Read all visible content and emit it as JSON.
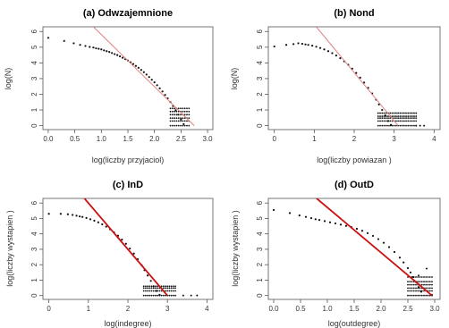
{
  "chart_data": [
    {
      "type": "scatter",
      "title": "(a) Odwzajemnione",
      "xlabel": "log(liczby przyjaciol)",
      "ylabel": "log(N)",
      "xlim": [
        -0.1,
        3.1
      ],
      "ylim": [
        -0.25,
        6.3
      ],
      "xticks": [
        "0.0",
        "0.5",
        "1.0",
        "1.5",
        "2.0",
        "2.5",
        "3.0"
      ],
      "xtick_values": [
        0,
        0.5,
        1,
        1.5,
        2,
        2.5,
        3
      ],
      "yticks": [
        "0",
        "1",
        "2",
        "3",
        "4",
        "5",
        "6"
      ],
      "ytick_values": [
        0,
        1,
        2,
        3,
        4,
        5,
        6
      ],
      "line_color": "#e28080",
      "line_width": 1,
      "fit_line": [
        [
          0.85,
          6.3
        ],
        [
          2.75,
          0.0
        ]
      ],
      "points": [
        [
          0.0,
          5.6
        ],
        [
          0.3,
          5.4
        ],
        [
          0.48,
          5.25
        ],
        [
          0.6,
          5.15
        ],
        [
          0.7,
          5.08
        ],
        [
          0.78,
          5.02
        ],
        [
          0.85,
          4.98
        ],
        [
          0.9,
          4.93
        ],
        [
          0.95,
          4.9
        ],
        [
          1.0,
          4.86
        ],
        [
          1.05,
          4.8
        ],
        [
          1.1,
          4.75
        ],
        [
          1.15,
          4.7
        ],
        [
          1.2,
          4.63
        ],
        [
          1.25,
          4.56
        ],
        [
          1.3,
          4.5
        ],
        [
          1.35,
          4.42
        ],
        [
          1.4,
          4.33
        ],
        [
          1.45,
          4.24
        ],
        [
          1.5,
          4.15
        ],
        [
          1.55,
          4.04
        ],
        [
          1.6,
          3.93
        ],
        [
          1.65,
          3.81
        ],
        [
          1.7,
          3.69
        ],
        [
          1.75,
          3.55
        ],
        [
          1.8,
          3.41
        ],
        [
          1.85,
          3.26
        ],
        [
          1.9,
          3.1
        ],
        [
          1.95,
          2.93
        ],
        [
          2.0,
          2.76
        ],
        [
          2.05,
          2.58
        ],
        [
          2.1,
          2.38
        ],
        [
          2.15,
          2.18
        ],
        [
          2.2,
          1.96
        ],
        [
          2.25,
          1.74
        ],
        [
          2.3,
          1.5
        ],
        [
          2.35,
          1.25
        ],
        [
          2.4,
          0.98
        ],
        [
          2.45,
          0.7
        ],
        [
          2.5,
          0.4
        ],
        [
          2.55,
          0.1
        ]
      ],
      "tail_levels": [
        1.1,
        0.9,
        0.7,
        0.48,
        0.3,
        0.0
      ],
      "tail_x": [
        2.3,
        2.65
      ]
    },
    {
      "type": "scatter",
      "title": "(b) Nond",
      "xlabel": "log(liczby powiazan )",
      "ylabel": "log(N)",
      "xlim": [
        -0.15,
        4.15
      ],
      "ylim": [
        -0.25,
        6.3
      ],
      "xticks": [
        "0",
        "1",
        "2",
        "3",
        "4"
      ],
      "xtick_values": [
        0,
        1,
        2,
        3,
        4
      ],
      "yticks": [
        "0",
        "1",
        "2",
        "3",
        "4",
        "5",
        "6"
      ],
      "ytick_values": [
        0,
        1,
        2,
        3,
        4,
        5,
        6
      ],
      "line_color": "#e28080",
      "line_width": 1,
      "fit_line": [
        [
          1.05,
          6.3
        ],
        [
          3.1,
          0.0
        ]
      ],
      "points": [
        [
          0.0,
          5.05
        ],
        [
          0.3,
          5.15
        ],
        [
          0.48,
          5.2
        ],
        [
          0.6,
          5.25
        ],
        [
          0.7,
          5.22
        ],
        [
          0.78,
          5.18
        ],
        [
          0.85,
          5.15
        ],
        [
          0.95,
          5.1
        ],
        [
          1.05,
          5.03
        ],
        [
          1.15,
          4.95
        ],
        [
          1.25,
          4.86
        ],
        [
          1.35,
          4.75
        ],
        [
          1.45,
          4.62
        ],
        [
          1.55,
          4.47
        ],
        [
          1.65,
          4.3
        ],
        [
          1.75,
          4.1
        ],
        [
          1.85,
          3.88
        ],
        [
          1.95,
          3.63
        ],
        [
          2.05,
          3.36
        ],
        [
          2.15,
          3.06
        ],
        [
          2.25,
          2.75
        ],
        [
          2.35,
          2.41
        ],
        [
          2.45,
          2.05
        ],
        [
          2.55,
          1.66
        ],
        [
          2.62,
          1.35
        ],
        [
          2.7,
          1.0
        ],
        [
          2.78,
          0.65
        ],
        [
          2.85,
          0.3
        ],
        [
          2.92,
          0.05
        ]
      ],
      "tail_levels": [
        0.8,
        0.6,
        0.48,
        0.3,
        0.0
      ],
      "tail_x": [
        2.6,
        3.55
      ],
      "outliers": [
        [
          3.55,
          0.0
        ],
        [
          3.65,
          0.0
        ],
        [
          3.75,
          0.0
        ]
      ]
    },
    {
      "type": "scatter",
      "title": "(c) InD",
      "xlabel": "log(indegree)",
      "ylabel": "log(liczby wystapien )",
      "xlim": [
        -0.15,
        4.15
      ],
      "ylim": [
        -0.25,
        6.3
      ],
      "xticks": [
        "0",
        "1",
        "2",
        "3",
        "4"
      ],
      "xtick_values": [
        0,
        1,
        2,
        3,
        4
      ],
      "yticks": [
        "0",
        "1",
        "2",
        "3",
        "4",
        "5",
        "6"
      ],
      "ytick_values": [
        0,
        1,
        2,
        3,
        4,
        5,
        6
      ],
      "line_color": "#cc1111",
      "line_width": 1.8,
      "fit_line": [
        [
          0.9,
          6.3
        ],
        [
          3.0,
          0.0
        ]
      ],
      "points": [
        [
          0.0,
          5.3
        ],
        [
          0.3,
          5.3
        ],
        [
          0.48,
          5.27
        ],
        [
          0.6,
          5.23
        ],
        [
          0.7,
          5.18
        ],
        [
          0.78,
          5.13
        ],
        [
          0.85,
          5.1
        ],
        [
          0.95,
          5.03
        ],
        [
          1.05,
          4.95
        ],
        [
          1.15,
          4.86
        ],
        [
          1.25,
          4.75
        ],
        [
          1.35,
          4.62
        ],
        [
          1.45,
          4.47
        ],
        [
          1.55,
          4.3
        ],
        [
          1.65,
          4.1
        ],
        [
          1.75,
          3.88
        ],
        [
          1.85,
          3.63
        ],
        [
          1.95,
          3.36
        ],
        [
          2.05,
          3.05
        ],
        [
          2.15,
          2.72
        ],
        [
          2.25,
          2.36
        ],
        [
          2.35,
          1.97
        ],
        [
          2.42,
          1.65
        ],
        [
          2.5,
          1.3
        ],
        [
          2.58,
          0.95
        ],
        [
          2.65,
          0.6
        ],
        [
          2.72,
          0.3
        ],
        [
          2.8,
          0.05
        ]
      ],
      "tail_levels": [
        0.6,
        0.48,
        0.3,
        0.0
      ],
      "tail_x": [
        2.4,
        3.2
      ],
      "outliers": [
        [
          3.4,
          0.0
        ],
        [
          3.6,
          0.0
        ],
        [
          3.75,
          0.0
        ]
      ]
    },
    {
      "type": "scatter",
      "title": "(d) OutD",
      "xlabel": "log(outdegree)",
      "ylabel": "log(liczby wystapien )",
      "xlim": [
        -0.1,
        3.1
      ],
      "ylim": [
        -0.25,
        6.3
      ],
      "xticks": [
        "0.0",
        "0.5",
        "1.0",
        "1.5",
        "2.0",
        "2.5",
        "3.0"
      ],
      "xtick_values": [
        0,
        0.5,
        1,
        1.5,
        2,
        2.5,
        3
      ],
      "yticks": [
        "0",
        "1",
        "2",
        "3",
        "4",
        "5",
        "6"
      ],
      "ytick_values": [
        0,
        1,
        2,
        3,
        4,
        5,
        6
      ],
      "line_color": "#cc1111",
      "line_width": 1.8,
      "fit_line": [
        [
          0.8,
          6.3
        ],
        [
          2.95,
          0.0
        ]
      ],
      "points": [
        [
          0.0,
          5.55
        ],
        [
          0.3,
          5.35
        ],
        [
          0.48,
          5.2
        ],
        [
          0.6,
          5.1
        ],
        [
          0.7,
          5.02
        ],
        [
          0.78,
          4.95
        ],
        [
          0.85,
          4.9
        ],
        [
          0.95,
          4.83
        ],
        [
          1.05,
          4.75
        ],
        [
          1.15,
          4.68
        ],
        [
          1.25,
          4.6
        ],
        [
          1.35,
          4.52
        ],
        [
          1.45,
          4.43
        ],
        [
          1.55,
          4.33
        ],
        [
          1.65,
          4.2
        ],
        [
          1.75,
          4.05
        ],
        [
          1.85,
          3.87
        ],
        [
          1.95,
          3.66
        ],
        [
          2.05,
          3.42
        ],
        [
          2.15,
          3.14
        ],
        [
          2.25,
          2.82
        ],
        [
          2.35,
          2.46
        ],
        [
          2.42,
          2.15
        ],
        [
          2.5,
          1.78
        ],
        [
          2.55,
          1.5
        ],
        [
          2.6,
          1.2
        ],
        [
          2.65,
          0.88
        ],
        [
          2.7,
          0.55
        ],
        [
          2.75,
          0.25
        ]
      ],
      "tail_levels": [
        1.2,
        0.9,
        0.7,
        0.48,
        0.3,
        0.0
      ],
      "tail_x": [
        2.5,
        2.95
      ],
      "outliers": [
        [
          2.7,
          1.3
        ],
        [
          2.85,
          1.75
        ],
        [
          2.95,
          0.05
        ]
      ]
    }
  ]
}
